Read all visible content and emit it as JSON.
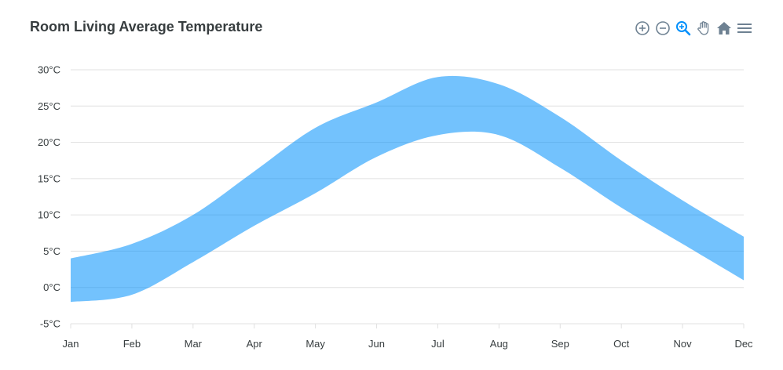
{
  "chart_data": {
    "type": "area",
    "title": "Room Living Average Temperature",
    "categories": [
      "Jan",
      "Feb",
      "Mar",
      "Apr",
      "May",
      "Jun",
      "Jul",
      "Aug",
      "Sep",
      "Oct",
      "Nov",
      "Dec"
    ],
    "series": [
      {
        "low": [
          -2,
          -1,
          3.5,
          8.5,
          13,
          18,
          21,
          21,
          16.5,
          11,
          6,
          1
        ],
        "high": [
          4,
          6,
          10,
          16,
          22,
          25.5,
          29,
          28,
          23.5,
          17.5,
          12,
          7
        ]
      }
    ],
    "y_ticks": [
      "-5°C",
      "0°C",
      "5°C",
      "10°C",
      "15°C",
      "20°C",
      "25°C",
      "30°C"
    ],
    "ylim": [
      -5,
      30
    ],
    "grid": true,
    "legend": "none",
    "colors": {
      "area": "#008ffb",
      "area_opacity": 0.55,
      "grid": "#e0e0e0",
      "text": "#373d3f",
      "icon": "#6e8192",
      "icon_active": "#008ffb"
    }
  },
  "toolbar": {
    "icons": [
      "zoom-in-icon",
      "zoom-out-icon",
      "selection-zoom-icon",
      "pan-icon",
      "reset-home-icon",
      "menu-icon"
    ]
  }
}
